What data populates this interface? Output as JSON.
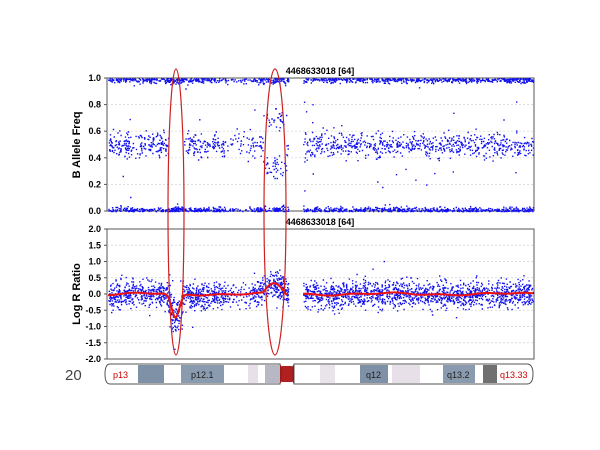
{
  "colors": {
    "points": "#1010ee",
    "smooth_line": "#ee1111",
    "highlight_ellipse": "#cc2222",
    "grid": "#d0d0d0",
    "band_label_red": "#cc0000",
    "band_label_black": "#222222",
    "centromere": "#9b1c1c"
  },
  "chart_data": [
    {
      "type": "scatter",
      "panel": "baf",
      "title": "4468633018 [64]",
      "ylabel": "B Allele Freq",
      "ylim": [
        0,
        1
      ],
      "yticks": [
        "0.0",
        "0.2",
        "0.4",
        "0.6",
        "0.8",
        "1.0"
      ],
      "ytick_values": [
        0,
        0.2,
        0.4,
        0.6,
        0.8,
        1.0
      ],
      "grid": true,
      "series": [
        {
          "clusters": [
            0.0,
            0.5,
            1.0
          ],
          "abnormal_region_cluster": [
            0.3,
            0.7
          ],
          "deleted_region_cluster": [
            0.0,
            1.0
          ]
        }
      ]
    },
    {
      "type": "scatter",
      "panel": "lrr",
      "title": "4468633018 [64]",
      "ylabel": "Log R Ratio",
      "ylim": [
        -2,
        2
      ],
      "yticks": [
        "2.0",
        "1.5",
        "1.0",
        "0.5",
        "0.0",
        "-0.5",
        "-1.0",
        "-1.5",
        "-2.0"
      ],
      "ytick_values": [
        2.0,
        1.5,
        1.0,
        0.5,
        0.0,
        -0.5,
        -1.0,
        -1.5,
        -2.0
      ],
      "grid": true,
      "series": [
        {
          "baseline": 0.0,
          "deletion_dip": -0.75,
          "gain_bump": 0.3
        }
      ]
    }
  ],
  "ideogram": {
    "chromosome": "20",
    "bands": [
      {
        "label": "p13",
        "label_color": "red"
      },
      {
        "label": "p12.1",
        "label_color": "black"
      },
      {
        "label": "q12",
        "label_color": "black"
      },
      {
        "label": "q13.2",
        "label_color": "black"
      },
      {
        "label": "q13.33",
        "label_color": "red"
      }
    ]
  }
}
